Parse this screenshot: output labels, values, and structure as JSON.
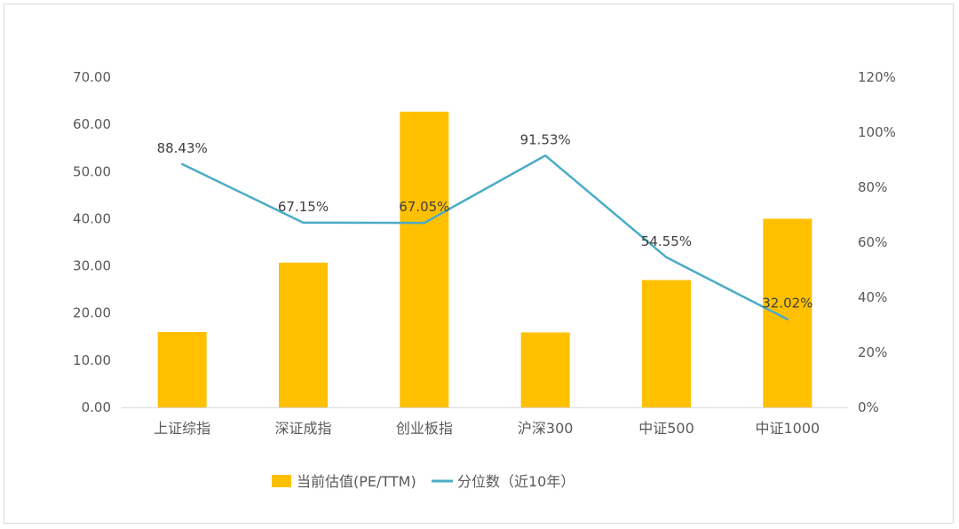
{
  "chart_data": {
    "type": "bar",
    "categories": [
      "上证综指",
      "深证成指",
      "创业板指",
      "沪深300",
      "中证500",
      "中证1000"
    ],
    "series": [
      {
        "name": "当前估值(PE/TTM)",
        "type": "bar",
        "axis": "left",
        "color": "#FFC000",
        "values": [
          16.0,
          30.7,
          62.7,
          15.9,
          27.0,
          40.0
        ]
      },
      {
        "name": "分位数（近10年）",
        "type": "line",
        "axis": "right",
        "color": "#4BACC6",
        "values": [
          0.8843,
          0.6715,
          0.6705,
          0.9153,
          0.5455,
          0.3202
        ],
        "labels": [
          "88.43%",
          "67.15%",
          "67.05%",
          "91.53%",
          "54.55%",
          "32.02%"
        ]
      }
    ],
    "y_left": {
      "ylim": [
        0,
        70
      ],
      "ticks": [
        "0.00",
        "10.00",
        "20.00",
        "30.00",
        "40.00",
        "50.00",
        "60.00",
        "70.00"
      ]
    },
    "y_right": {
      "ylim": [
        0,
        1.2
      ],
      "ticks": [
        "0%",
        "20%",
        "40%",
        "60%",
        "80%",
        "100%",
        "120%"
      ]
    },
    "title": "",
    "xlabel": "",
    "ylabel": "",
    "grid": false,
    "legend": "bottom"
  }
}
